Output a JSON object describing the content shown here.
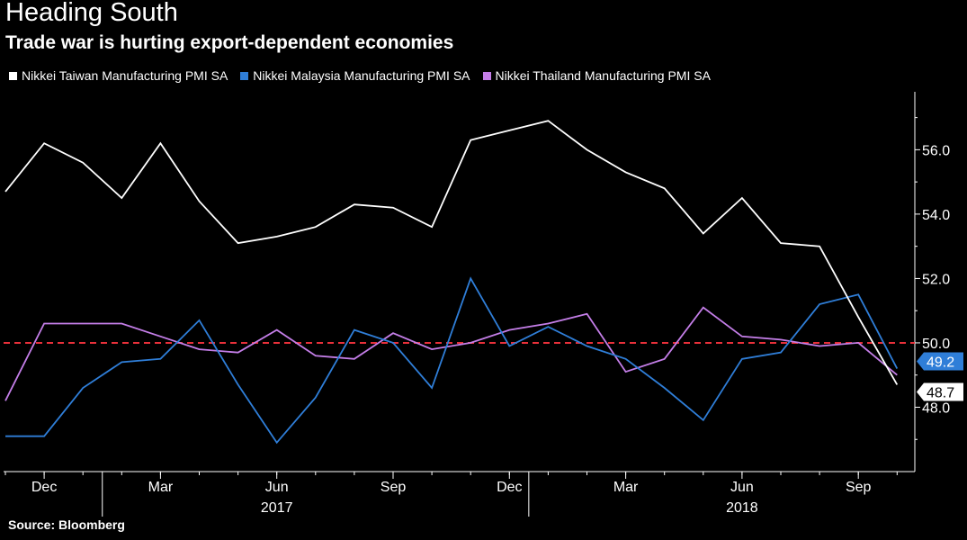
{
  "title": "Heading South",
  "subtitle": "Trade war is hurting export-dependent economies",
  "source": "Source: Bloomberg",
  "colors": {
    "background": "#000000",
    "taiwan": "#ffffff",
    "malaysia": "#2f7ed8",
    "thailand": "#c47ee8",
    "reference": "#e8303a"
  },
  "chart_data": {
    "type": "line",
    "x": [
      "Nov 2016",
      "Dec 2016",
      "Jan 2017",
      "Feb 2017",
      "Mar 2017",
      "Apr 2017",
      "May 2017",
      "Jun 2017",
      "Jul 2017",
      "Aug 2017",
      "Sep 2017",
      "Oct 2017",
      "Nov 2017",
      "Dec 2017",
      "Jan 2018",
      "Feb 2018",
      "Mar 2018",
      "Apr 2018",
      "May 2018",
      "Jun 2018",
      "Jul 2018",
      "Aug 2018",
      "Sep 2018",
      "Oct 2018"
    ],
    "series": [
      {
        "name": "Nikkei Taiwan Manufacturing PMI SA",
        "color": "#ffffff",
        "values": [
          54.7,
          56.2,
          55.6,
          54.5,
          56.2,
          54.4,
          53.1,
          53.3,
          53.6,
          54.3,
          54.2,
          53.6,
          56.3,
          56.6,
          56.9,
          56.0,
          55.3,
          54.8,
          53.4,
          54.5,
          53.1,
          53.0,
          50.8,
          48.7
        ]
      },
      {
        "name": "Nikkei Malaysia Manufacturing PMI SA",
        "color": "#2f7ed8",
        "values": [
          47.1,
          47.1,
          48.6,
          49.4,
          49.5,
          50.7,
          48.7,
          46.9,
          48.3,
          50.4,
          50.0,
          48.6,
          52.0,
          49.9,
          50.5,
          49.9,
          49.5,
          48.6,
          47.6,
          49.5,
          49.7,
          51.2,
          51.5,
          49.2
        ]
      },
      {
        "name": "Nikkei Thailand Manufacturing PMI SA",
        "color": "#c47ee8",
        "values": [
          48.2,
          50.6,
          50.6,
          50.6,
          50.2,
          49.8,
          49.7,
          50.4,
          49.6,
          49.5,
          50.3,
          49.8,
          50.0,
          50.4,
          50.6,
          50.9,
          49.1,
          49.5,
          51.1,
          50.2,
          50.1,
          49.9,
          50.0,
          49.0
        ]
      }
    ],
    "ylim": [
      46.0,
      57.8
    ],
    "yticks": [
      48.0,
      50.0,
      52.0,
      54.0,
      56.0
    ],
    "ytick_labels": [
      "48.0",
      "50.0",
      "52.0",
      "54.0",
      "56.0"
    ],
    "xtick_labels": [
      {
        "index": 1,
        "label": "Dec"
      },
      {
        "index": 4,
        "label": "Mar"
      },
      {
        "index": 7,
        "label": "Jun"
      },
      {
        "index": 10,
        "label": "Sep"
      },
      {
        "index": 13,
        "label": "Dec"
      },
      {
        "index": 16,
        "label": "Mar"
      },
      {
        "index": 19,
        "label": "Jun"
      },
      {
        "index": 22,
        "label": "Sep"
      }
    ],
    "year_labels": [
      {
        "index": 7,
        "label": "2017"
      },
      {
        "index": 19,
        "label": "2018"
      }
    ],
    "year_separators": [
      2.5,
      13.5
    ],
    "reference_line": 50.0,
    "end_labels": [
      {
        "series": 1,
        "text": "49.2"
      },
      {
        "series": 0,
        "text": "48.7"
      }
    ],
    "grid": false,
    "legend_position": "top-left",
    "yaxis_side": "right"
  }
}
